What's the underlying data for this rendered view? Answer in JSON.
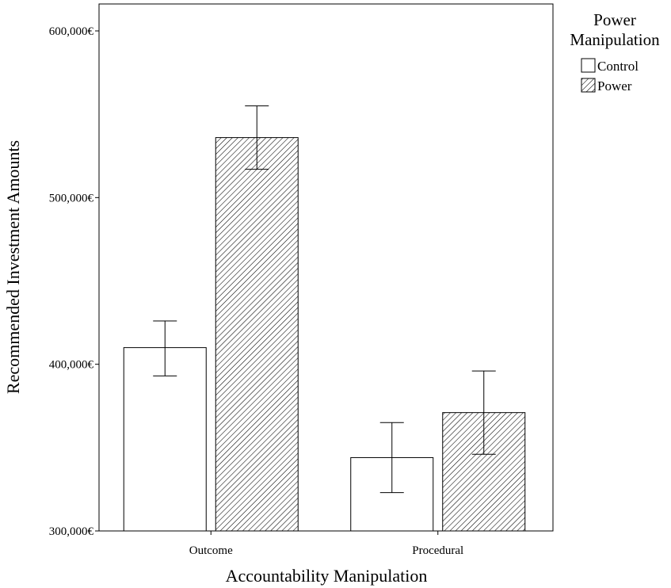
{
  "chart_data": {
    "type": "bar",
    "xlabel": "Accountability Manipulation",
    "ylabel": "Recommended Investment Amounts",
    "categories": [
      "Outcome",
      "Procedural"
    ],
    "ylim": [
      300000,
      600000
    ],
    "yticks": [
      300000,
      400000,
      500000,
      600000
    ],
    "ytick_labels": [
      "300,000€",
      "400,000€",
      "500,000€",
      "600,000€"
    ],
    "legend": {
      "title_lines": [
        "Power",
        "Manipulation"
      ],
      "placement": "top-right, outside plot"
    },
    "series": [
      {
        "name": "Control",
        "fill": "plain",
        "values": [
          410000,
          344000
        ],
        "error_low": [
          393000,
          323000
        ],
        "error_high": [
          426000,
          365000
        ]
      },
      {
        "name": "Power",
        "fill": "hatched",
        "values": [
          536000,
          371000
        ],
        "error_low": [
          517000,
          346000
        ],
        "error_high": [
          555000,
          396000
        ]
      }
    ],
    "grid": false,
    "colors": {
      "bar_fill": "#ffffff",
      "stroke": "#000000"
    }
  }
}
